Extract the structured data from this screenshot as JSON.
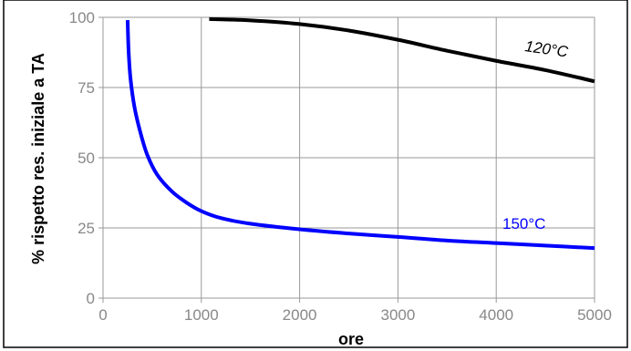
{
  "chart_data": {
    "type": "line",
    "title": "",
    "xlabel": "ore",
    "ylabel": "% rispetto res. iniziale a TA",
    "xlim": [
      0,
      5000
    ],
    "ylim": [
      0,
      100
    ],
    "xticks": [
      "0",
      "1000",
      "2000",
      "3000",
      "4000",
      "5000"
    ],
    "yticks": [
      "0",
      "25",
      "50",
      "75",
      "100"
    ],
    "grid": true,
    "series": [
      {
        "name": "120°C",
        "color": "#000000",
        "x": [
          1080,
          1500,
          2000,
          2500,
          3000,
          3500,
          4000,
          4500,
          5000
        ],
        "y": [
          99.4,
          98.9,
          97.6,
          95.3,
          92.0,
          88.1,
          84.5,
          81.2,
          77.2
        ]
      },
      {
        "name": "150°C",
        "color": "#0000ff",
        "x": [
          250,
          260,
          280,
          320,
          380,
          450,
          550,
          700,
          850,
          1000,
          1200,
          1500,
          2000,
          2500,
          3000,
          3500,
          4000,
          4500,
          5000
        ],
        "y": [
          99,
          88,
          78,
          68,
          59,
          51,
          44,
          38,
          34,
          31,
          28.5,
          26.5,
          24.5,
          23,
          21.8,
          20.5,
          19.6,
          18.7,
          17.8
        ]
      }
    ]
  }
}
